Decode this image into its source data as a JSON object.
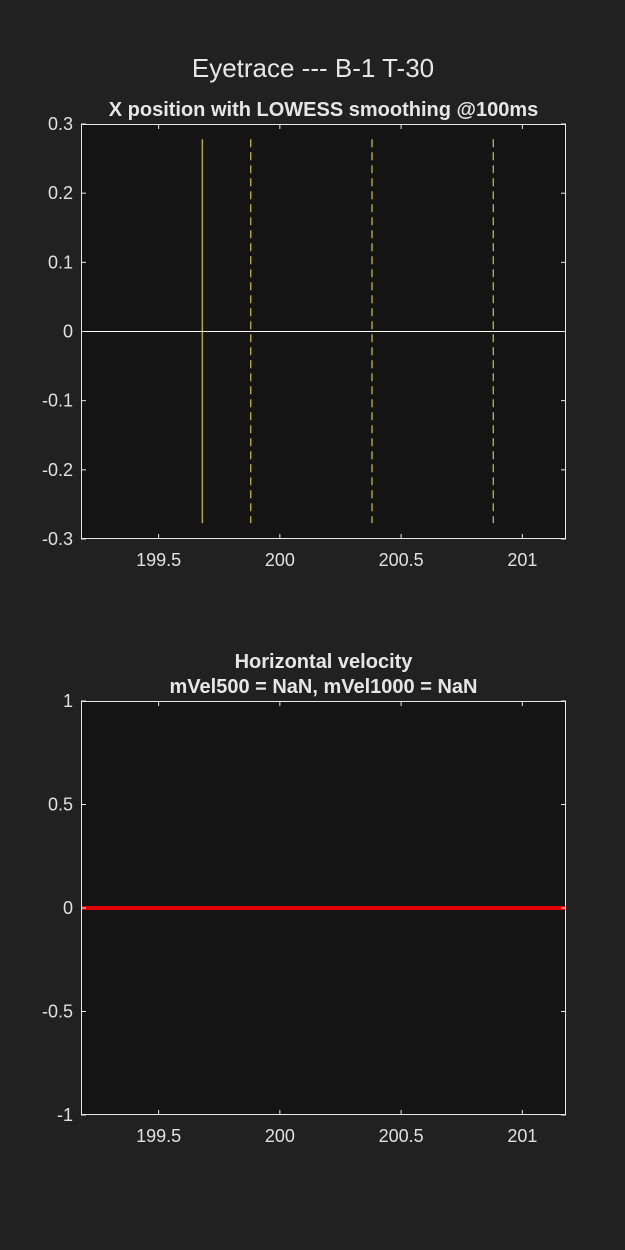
{
  "figure": {
    "title": "Eyetrace ---  B-1 T-30",
    "background": "#212121",
    "axes_background": "#141414",
    "axes_color": "#e8e8e8"
  },
  "chart_data": [
    {
      "type": "line",
      "title": "X position with LOWESS smoothing @100ms",
      "xlabel": "",
      "ylabel": "",
      "xlim": [
        199.18,
        201.18
      ],
      "ylim": [
        -0.3,
        0.3
      ],
      "xticks": [
        199.5,
        200,
        200.5,
        201
      ],
      "xtick_labels": [
        "199.5",
        "200",
        "200.5",
        "201"
      ],
      "yticks": [
        0.3,
        0.2,
        0.1,
        0,
        -0.1,
        -0.2,
        -0.3
      ],
      "ytick_labels": [
        "0.3",
        "0.2",
        "0.1",
        "0",
        "-0.1",
        "-0.2",
        "-0.3"
      ],
      "grid": false,
      "series": [
        {
          "x": [
            199.18,
            201.18
          ],
          "y": [
            0,
            0
          ],
          "color": "#ffffff",
          "style": "solid",
          "width": 1
        }
      ],
      "vlines": [
        {
          "x": 199.68,
          "y": [
            -0.277,
            0.278
          ],
          "color": "#d4c23a",
          "style": "solid"
        },
        {
          "x": 199.88,
          "y": [
            -0.277,
            0.278
          ],
          "color": "#d4c23a",
          "style": "dashed"
        },
        {
          "x": 200.38,
          "y": [
            -0.277,
            0.278
          ],
          "color": "#d4c23a",
          "style": "dashed"
        },
        {
          "x": 200.88,
          "y": [
            -0.277,
            0.278
          ],
          "color": "#d4c23a",
          "style": "dashed"
        }
      ]
    },
    {
      "type": "line",
      "title": "Horizontal velocity\nmVel500 = NaN, mVel1000 = NaN",
      "xlabel": "",
      "ylabel": "",
      "xlim": [
        199.18,
        201.18
      ],
      "ylim": [
        -1,
        1
      ],
      "xticks": [
        199.5,
        200,
        200.5,
        201
      ],
      "xtick_labels": [
        "199.5",
        "200",
        "200.5",
        "201"
      ],
      "yticks": [
        1,
        0.5,
        0,
        -0.5,
        -1
      ],
      "ytick_labels": [
        "1",
        "0.5",
        "0",
        "-0.5",
        "-1"
      ],
      "grid": false,
      "series": [
        {
          "x": [
            199.18,
            201.18
          ],
          "y": [
            0,
            0
          ],
          "color": "#e00000",
          "style": "solid",
          "width": 4
        }
      ],
      "vlines": []
    }
  ]
}
